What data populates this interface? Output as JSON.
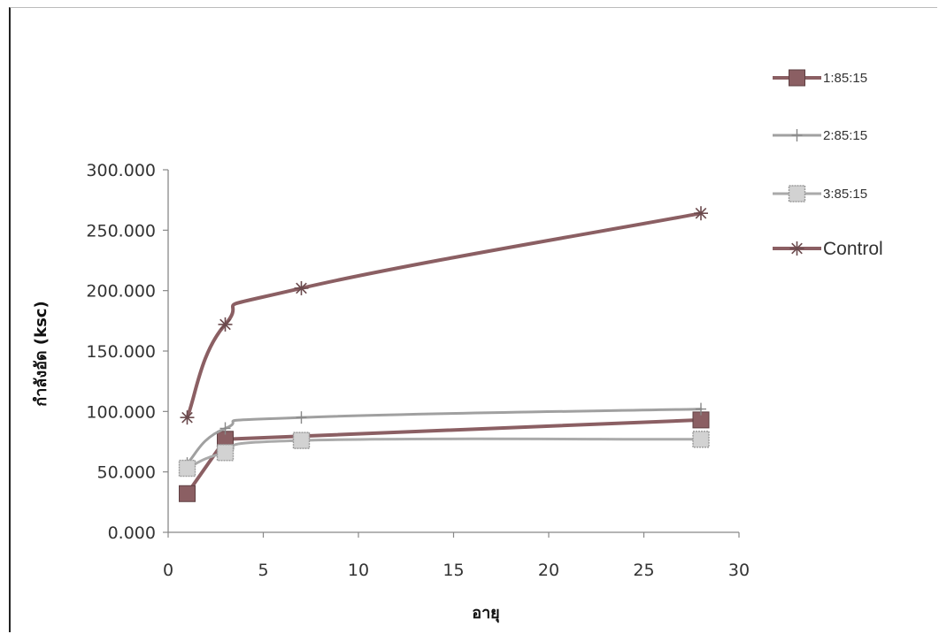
{
  "chart_data": {
    "type": "scatter",
    "xlabel": "อายุ",
    "ylabel": "กำลังอัด (ksc)",
    "xlim": [
      0,
      30
    ],
    "ylim": [
      0,
      300
    ],
    "x_ticks": [
      "0",
      "5",
      "10",
      "15",
      "20",
      "25",
      "30"
    ],
    "y_ticks": [
      "0.000",
      "50.000",
      "100.000",
      "150.000",
      "200.000",
      "250.000",
      "300.000"
    ],
    "grid": false,
    "legend_position": "right",
    "series": [
      {
        "name": "1:85:15",
        "marker": "square",
        "color": "#8b5f63",
        "x": [
          1,
          3,
          28
        ],
        "y": [
          32,
          77,
          93
        ]
      },
      {
        "name": "2:85:15",
        "marker": "plus",
        "color": "#9a9a9a",
        "x": [
          1,
          3,
          7,
          28
        ],
        "y": [
          57,
          86,
          95,
          102
        ]
      },
      {
        "name": "3:85:15",
        "marker": "dotted-square",
        "color": "#a8a8a8",
        "x": [
          1,
          3,
          7,
          28
        ],
        "y": [
          53,
          66,
          76,
          77
        ]
      },
      {
        "name": "Control",
        "marker": "asterisk",
        "color": "#8b5f63",
        "x": [
          1,
          3,
          7,
          28
        ],
        "y": [
          95,
          172,
          202,
          264
        ]
      }
    ]
  }
}
